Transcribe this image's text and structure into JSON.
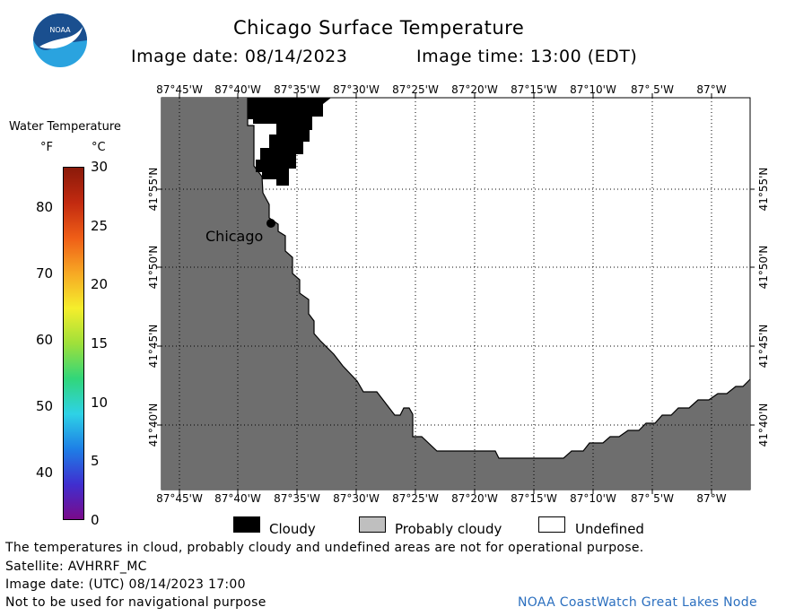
{
  "header": {
    "title": "Chicago Surface Temperature",
    "image_date": "Image date: 08/14/2023",
    "image_time": "Image time: 13:00 (EDT)"
  },
  "logo": {
    "text": "NOAA",
    "colors": {
      "top": "#1a4f8f",
      "bottom": "#2aa3df",
      "bird": "#ffffff"
    }
  },
  "colorbar": {
    "title": "Water Temperature",
    "unit_f": "°F",
    "unit_c": "°C",
    "f_ticks": [
      "80",
      "70",
      "60",
      "50",
      "40"
    ],
    "c_ticks": [
      "30",
      "25",
      "20",
      "15",
      "10",
      "5",
      "0"
    ],
    "gradient": [
      "#7a0a8a",
      "#3f2fd0",
      "#1e7fe6",
      "#2ed2e6",
      "#31d67a",
      "#9fe03a",
      "#f5ee2c",
      "#f7a824",
      "#ef5e17",
      "#c22a10",
      "#8a1a0a"
    ]
  },
  "map": {
    "lon_labels": [
      "87°45'W",
      "87°40'W",
      "87°35'W",
      "87°30'W",
      "87°25'W",
      "87°20'W",
      "87°15'W",
      "87°10'W",
      "87° 5'W",
      "87°W"
    ],
    "lat_labels": [
      "41°55'N",
      "41°50'N",
      "41°45'N",
      "41°40'N"
    ],
    "city_label": "Chicago",
    "colors": {
      "land": "#6e6e6e",
      "water": "#ffffff",
      "cloud": "#000000",
      "grid": "#000000"
    }
  },
  "legend": {
    "items": [
      {
        "label": "Cloudy",
        "color": "#000000"
      },
      {
        "label": "Probably cloudy",
        "color": "#bfbfbf"
      },
      {
        "label": "Undefined",
        "color": "#ffffff"
      }
    ]
  },
  "footer": {
    "disclaimer": "The temperatures in cloud, probably cloudy and undefined areas are not for operational purpose.",
    "satellite": "Satellite: AVHRRF_MC",
    "utc_date": "Image date: (UTC) 08/14/2023  17:00",
    "nav_warning": "Not to be used for navigational purpose",
    "credit": "NOAA CoastWatch Great Lakes Node"
  }
}
